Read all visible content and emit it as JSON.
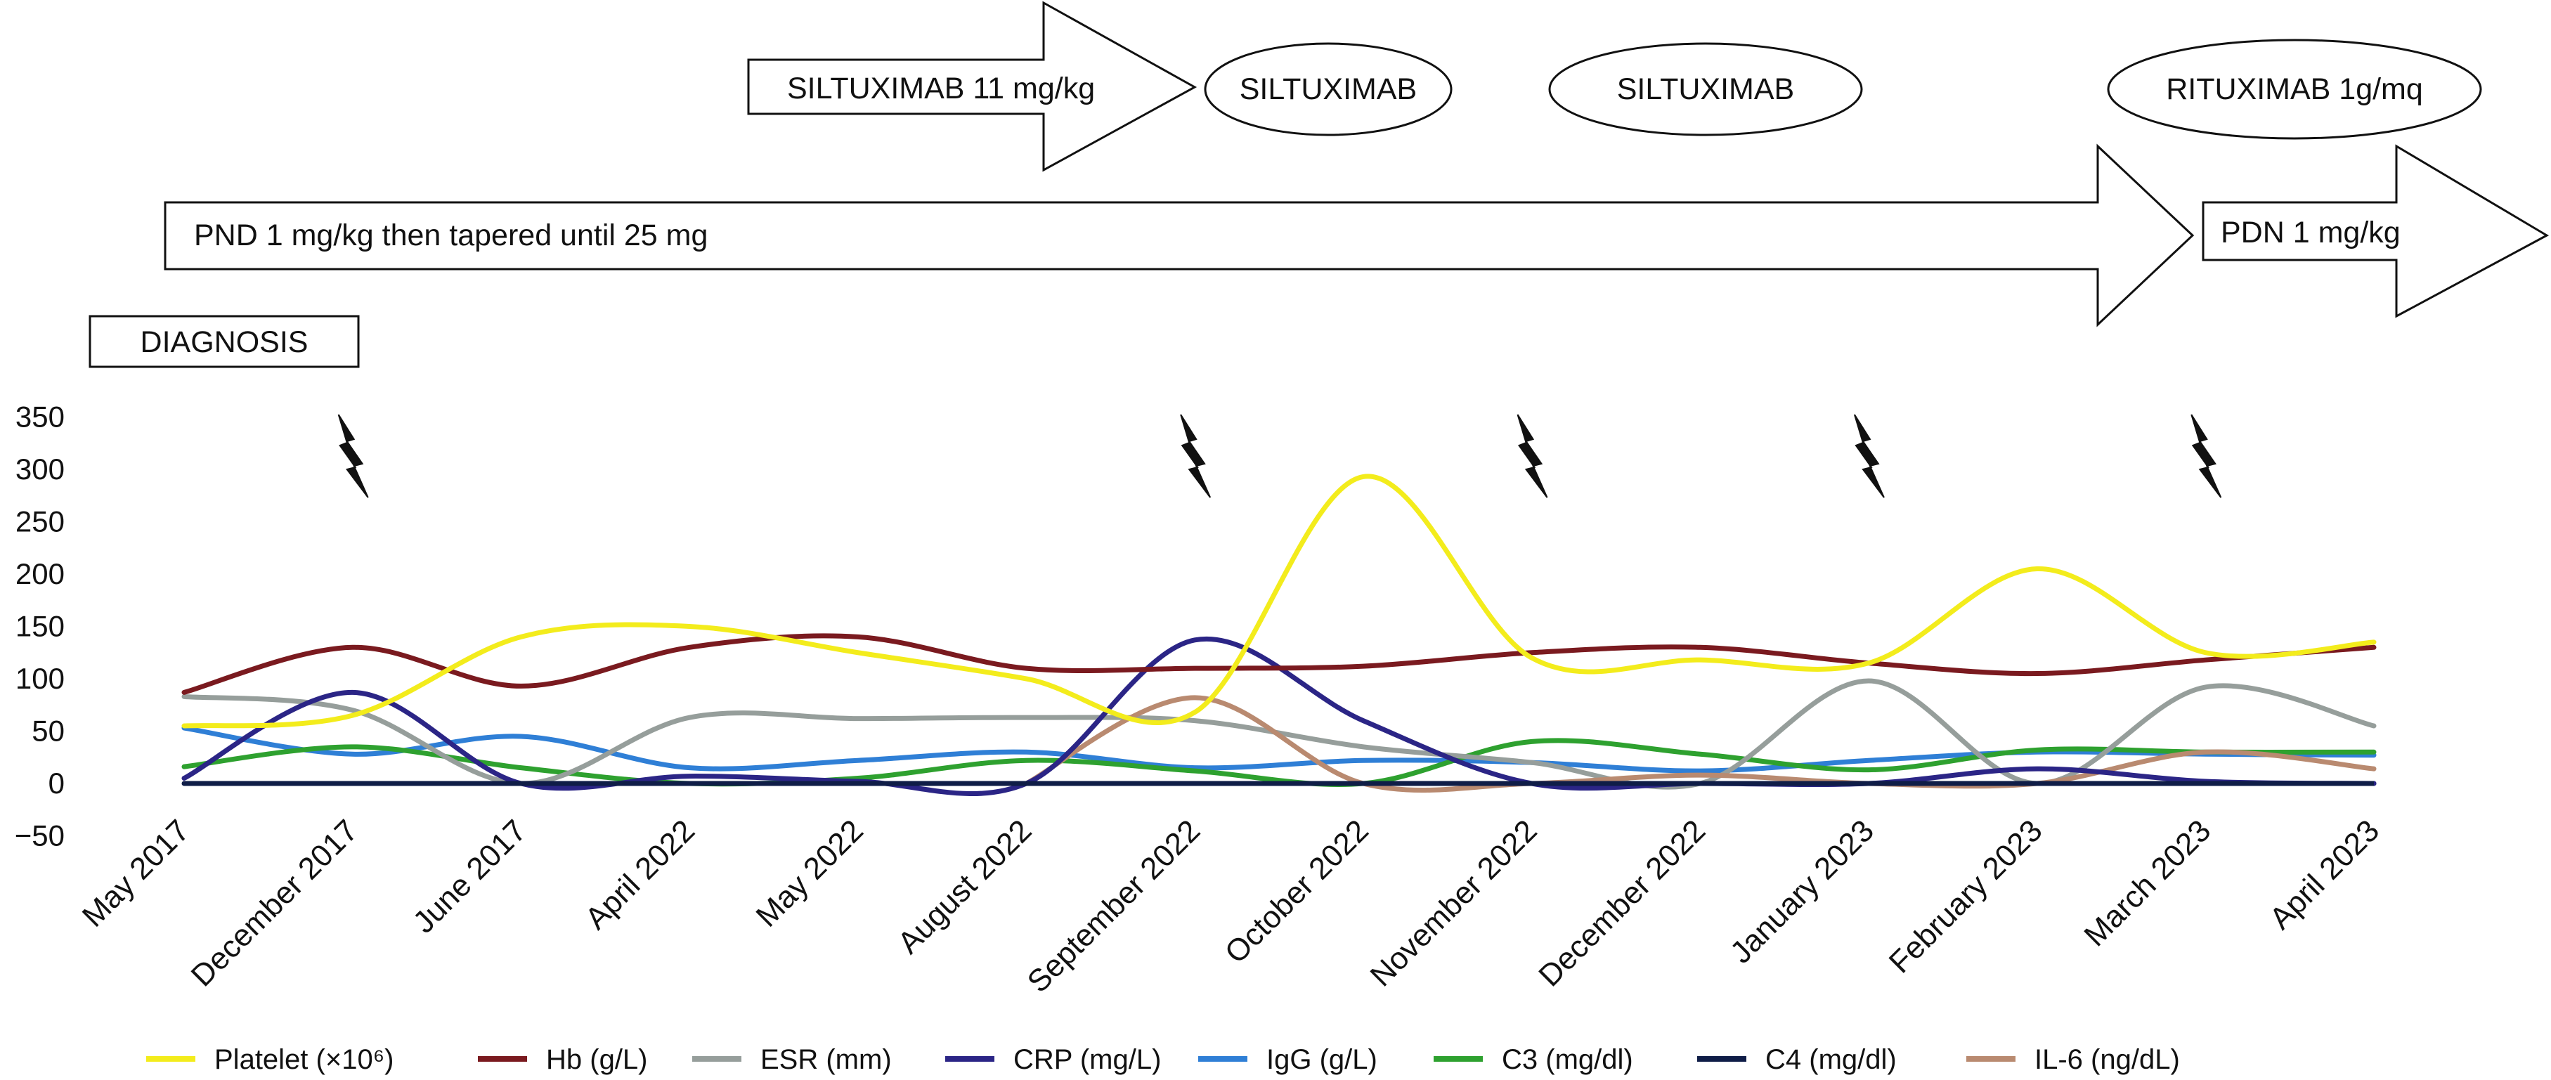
{
  "chart_data": {
    "type": "line",
    "title": "",
    "xlabel": "",
    "ylabel": "",
    "ylim": [
      -50,
      350
    ],
    "yticks": [
      -50,
      0,
      50,
      100,
      150,
      200,
      250,
      300,
      350
    ],
    "ytick_labels": [
      "−50",
      "0",
      "50",
      "100",
      "150",
      "200",
      "250",
      "300",
      "350"
    ],
    "grid": false,
    "legend_position": "bottom",
    "categories": [
      "May 2017",
      "December 2017",
      "June 2017",
      "April 2022",
      "May 2022",
      "August 2022",
      "September 2022",
      "October 2022",
      "November 2022",
      "December 2022",
      "January 2023",
      "February 2023",
      "March 2023",
      "April 2023"
    ],
    "series": [
      {
        "name": "Platelet (×10⁶)",
        "color": "#f3ec1c",
        "values": [
          55,
          65,
          140,
          150,
          125,
          100,
          68,
          293,
          120,
          118,
          115,
          205,
          125,
          135
        ]
      },
      {
        "name": "Hb (g/L)",
        "color": "#7a1a1f",
        "values": [
          87,
          130,
          93,
          130,
          140,
          110,
          110,
          112,
          125,
          130,
          115,
          105,
          118,
          130
        ]
      },
      {
        "name": "ESR (mm)",
        "color": "#969e9b",
        "values": [
          83,
          70,
          0,
          63,
          62,
          63,
          60,
          35,
          20,
          0,
          98,
          0,
          92,
          55
        ]
      },
      {
        "name": "CRP (mg/L)",
        "color": "#2b2586",
        "values": [
          5,
          87,
          0,
          7,
          2,
          0,
          137,
          60,
          0,
          0,
          0,
          14,
          2,
          0
        ]
      },
      {
        "name": "IgG (g/L)",
        "color": "#2f7fd6",
        "values": [
          53,
          28,
          45,
          15,
          22,
          30,
          15,
          22,
          20,
          12,
          22,
          30,
          28,
          27
        ]
      },
      {
        "name": "C3 (mg/dl)",
        "color": "#2ea12f",
        "values": [
          16,
          35,
          15,
          0,
          5,
          22,
          12,
          0,
          40,
          28,
          13,
          32,
          30,
          30
        ]
      },
      {
        "name": "C4 (mg/dl)",
        "color": "#0f1d47",
        "values": [
          0,
          0,
          0,
          0,
          0,
          0,
          0,
          0,
          0,
          0,
          0,
          0,
          0,
          0
        ]
      },
      {
        "name": "IL-6 (ng/dL)",
        "color": "#b98a70",
        "values": [
          null,
          null,
          null,
          null,
          null,
          0,
          82,
          0,
          0,
          8,
          0,
          0,
          30,
          14
        ]
      }
    ],
    "flare_markers": [
      "December 2017",
      "September 2022",
      "November 2022",
      "January 2023",
      "March 2023"
    ],
    "annotations": {
      "diagnosis": "DIAGNOSIS",
      "pnd": "PND 1 mg/kg then tapered until 25 mg",
      "siltuximab_dose": "SILTUXIMAB 11 mg/kg",
      "siltuximab_1": "SILTUXIMAB",
      "siltuximab_2": "SILTUXIMAB",
      "rituximab": "RITUXIMAB 1g/mq",
      "pdn": "PDN 1 mg/kg"
    }
  }
}
